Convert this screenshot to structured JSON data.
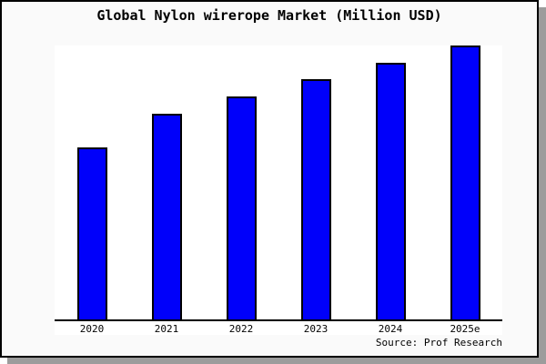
{
  "chart_data": {
    "type": "bar",
    "title": "Global Nylon wirerope Market (Million USD)",
    "categories": [
      "2020",
      "2021",
      "2022",
      "2023",
      "2024",
      "2025e"
    ],
    "values": [
      62.8,
      75.1,
      81.4,
      87.7,
      93.7,
      100.0
    ],
    "values_note": "Chart shows no y-axis or value labels; values are estimated bar heights as percent of the tallest bar (2025e).",
    "xlabel": "",
    "ylabel": "",
    "y_axis_visible": false,
    "grid": false,
    "legend": "none",
    "source": "Source: Prof Research",
    "bar_fill_color": "#0000fa",
    "bar_border_color": "#000000"
  },
  "colors": {
    "card_background": "#fafafa",
    "plot_background": "#ffffff",
    "card_border": "#000000",
    "shadow": "#9c9c9c"
  }
}
